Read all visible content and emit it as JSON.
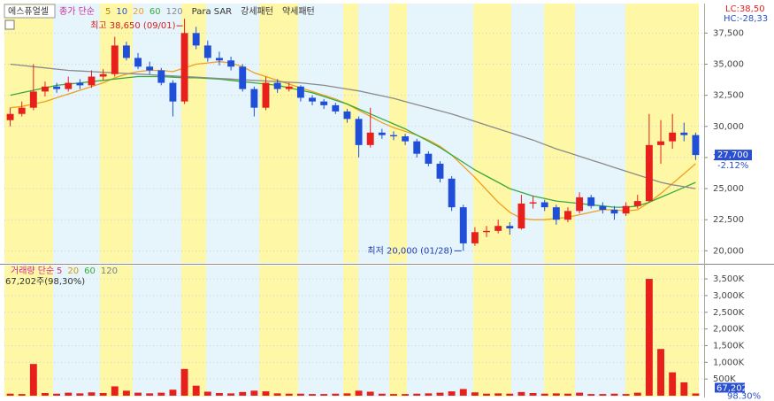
{
  "chart_data": [
    {
      "type": "candlestick",
      "name": "에스퓨얼셀",
      "ma_label": "종가 단순",
      "legend_extra": [
        {
          "label": "5",
          "color": "#b08800"
        },
        {
          "label": "10",
          "color": "#2a4fd0"
        }
      ],
      "indicators": [
        "Para SAR",
        "강세패턴",
        "약세패턴"
      ],
      "lc_label": "LC:38,50",
      "hc_label": "HC:-28,33",
      "last_price_label": "27,700",
      "last_change_label": "-2.12%",
      "high_annotation": "최고 38,650 (09/01)",
      "low_annotation": "최저 20,000 (01/28)",
      "up_color": "#e8201c",
      "down_color": "#1f4fd8",
      "open": [
        30500,
        31000,
        31500,
        32800,
        33200,
        33000,
        33500,
        33300,
        34000,
        34200,
        36500,
        35500,
        34800,
        34500,
        33500,
        32000,
        37500,
        36500,
        35500,
        35300,
        34800,
        33000,
        31500,
        33500,
        33000,
        33200,
        32300,
        32000,
        31700,
        31200,
        30600,
        28500,
        29500,
        29300,
        29200,
        28800,
        27800,
        27000,
        25800,
        23500,
        20600,
        21500,
        21600,
        22000,
        21800,
        23800,
        23900,
        23500,
        22500,
        23200,
        24300,
        23600,
        23300,
        23000,
        23600,
        24000,
        28500,
        28800,
        29500,
        29300
      ],
      "high": [
        31500,
        32000,
        35000,
        33600,
        33500,
        34000,
        33800,
        34500,
        34600,
        37200,
        36800,
        35900,
        35200,
        34700,
        33700,
        38650,
        38000,
        36900,
        36000,
        35600,
        35000,
        33200,
        34000,
        33800,
        33500,
        33300,
        32500,
        32200,
        31900,
        31400,
        30800,
        31500,
        29800,
        29600,
        29400,
        29000,
        28000,
        27200,
        26000,
        23700,
        21900,
        22000,
        22500,
        22300,
        24500,
        24400,
        24100,
        23700,
        23500,
        24700,
        24500,
        23900,
        23600,
        23900,
        24500,
        31000,
        30500,
        31000,
        30300,
        29500
      ],
      "low": [
        30000,
        30800,
        31300,
        32400,
        32700,
        32800,
        33000,
        33100,
        33700,
        34000,
        35300,
        34600,
        34200,
        33300,
        30800,
        31800,
        36200,
        35200,
        34900,
        34500,
        32800,
        30800,
        31300,
        32700,
        32800,
        32000,
        31700,
        31400,
        31000,
        30300,
        27500,
        28300,
        29000,
        28900,
        28500,
        27500,
        26800,
        25500,
        23200,
        20000,
        20400,
        21100,
        21400,
        21300,
        21700,
        23400,
        23200,
        22100,
        22300,
        23000,
        23400,
        23000,
        22500,
        22800,
        23400,
        23900,
        27000,
        28200,
        28800,
        27300
      ],
      "close": [
        31000,
        31500,
        32800,
        33200,
        33000,
        33500,
        33300,
        34000,
        34200,
        36500,
        35500,
        34800,
        34500,
        33500,
        32000,
        37500,
        36500,
        35500,
        35300,
        34800,
        33000,
        31500,
        33500,
        33000,
        33200,
        32300,
        32000,
        31700,
        31200,
        30600,
        28500,
        29500,
        29300,
        29200,
        28800,
        27800,
        27000,
        25800,
        23500,
        20600,
        21500,
        21600,
        22000,
        21800,
        23800,
        23900,
        23500,
        22500,
        23200,
        24300,
        23600,
        23300,
        23000,
        23600,
        24000,
        28500,
        28800,
        29500,
        29300,
        27700
      ],
      "series": [
        {
          "name": "20",
          "color": "#f0a020",
          "values": [
            31500,
            31600,
            31800,
            32000,
            32300,
            32600,
            32900,
            33200,
            33500,
            33900,
            34200,
            34400,
            34500,
            34500,
            34400,
            34700,
            35000,
            35100,
            35200,
            35100,
            34800,
            34300,
            34000,
            33700,
            33400,
            33100,
            32800,
            32500,
            32200,
            31800,
            31300,
            30800,
            30300,
            29900,
            29600,
            29300,
            28900,
            28400,
            27700,
            26800,
            25900,
            24900,
            23900,
            23100,
            22600,
            22500,
            22500,
            22600,
            22700,
            22900,
            23100,
            23300,
            23300,
            23200,
            23300,
            23900,
            24600,
            25400,
            26200,
            27000
          ]
        },
        {
          "name": "60",
          "color": "#3aaa3a",
          "values": [
            32500,
            32700,
            32900,
            33100,
            33300,
            33400,
            33500,
            33600,
            33700,
            33800,
            33900,
            34000,
            34000,
            34000,
            33950,
            33900,
            33900,
            33850,
            33800,
            33700,
            33600,
            33500,
            33400,
            33300,
            33100,
            32900,
            32700,
            32400,
            32100,
            31800,
            31400,
            31000,
            30600,
            30200,
            29800,
            29300,
            28800,
            28300,
            27700,
            27100,
            26500,
            26000,
            25500,
            25000,
            24700,
            24400,
            24200,
            24000,
            23900,
            23800,
            23700,
            23600,
            23500,
            23500,
            23600,
            23900,
            24300,
            24700,
            25100,
            25500
          ]
        },
        {
          "name": "120",
          "color": "#8a8a8a",
          "values": [
            35000,
            34900,
            34800,
            34700,
            34600,
            34500,
            34450,
            34400,
            34350,
            34300,
            34250,
            34200,
            34150,
            34100,
            34050,
            34000,
            33950,
            33900,
            33850,
            33800,
            33750,
            33700,
            33650,
            33600,
            33550,
            33500,
            33400,
            33300,
            33150,
            33000,
            32850,
            32650,
            32450,
            32250,
            32000,
            31750,
            31500,
            31250,
            31000,
            30700,
            30400,
            30100,
            29800,
            29500,
            29200,
            28900,
            28550,
            28200,
            27900,
            27600,
            27300,
            27000,
            26700,
            26400,
            26100,
            25800,
            25500,
            25300,
            25150,
            25000
          ]
        }
      ],
      "ylim": [
        19100,
        39800
      ],
      "yticks": [
        {
          "value": 20000,
          "label": "20,000"
        },
        {
          "value": 22500,
          "label": "22,500"
        },
        {
          "value": 25000,
          "label": "25,000"
        },
        {
          "value": 27500,
          "label": "27,500"
        },
        {
          "value": 30000,
          "label": "30,000"
        },
        {
          "value": 32500,
          "label": "32,500"
        },
        {
          "value": 35000,
          "label": "35,000"
        },
        {
          "value": 37500,
          "label": "37,500"
        }
      ],
      "grid": true
    },
    {
      "type": "bar",
      "name": "거래량 단순",
      "legend_extra": [
        {
          "label": "5",
          "color": "#d0307a"
        },
        {
          "label": "20",
          "color": "#d0a000"
        },
        {
          "label": "60",
          "color": "#3aaa3a"
        },
        {
          "label": "120",
          "color": "#7080a0"
        }
      ],
      "summary": "67,202주(98,30%)",
      "last_volume_label": "67,202",
      "last_ratio_label": "98.30%",
      "color": "#e8201c",
      "values": [
        60,
        50,
        950,
        80,
        60,
        90,
        70,
        100,
        80,
        280,
        150,
        90,
        70,
        90,
        180,
        800,
        300,
        120,
        80,
        70,
        110,
        150,
        130,
        70,
        60,
        60,
        50,
        50,
        60,
        70,
        150,
        120,
        60,
        50,
        50,
        60,
        70,
        90,
        130,
        200,
        100,
        60,
        70,
        60,
        110,
        80,
        60,
        70,
        60,
        90,
        50,
        50,
        60,
        50,
        90,
        3500,
        1400,
        700,
        400,
        67.202
      ],
      "ylim": [
        0,
        3900
      ],
      "yticks": [
        {
          "value": 500,
          "label": "500K"
        },
        {
          "value": 1000,
          "label": "1,000K"
        },
        {
          "value": 1500,
          "label": "1,500K"
        },
        {
          "value": 2000,
          "label": "2,000K"
        },
        {
          "value": 2500,
          "label": "2,500K"
        },
        {
          "value": 3000,
          "label": "3,000K"
        },
        {
          "value": 3500,
          "label": "3,500K"
        }
      ],
      "grid": true
    }
  ]
}
